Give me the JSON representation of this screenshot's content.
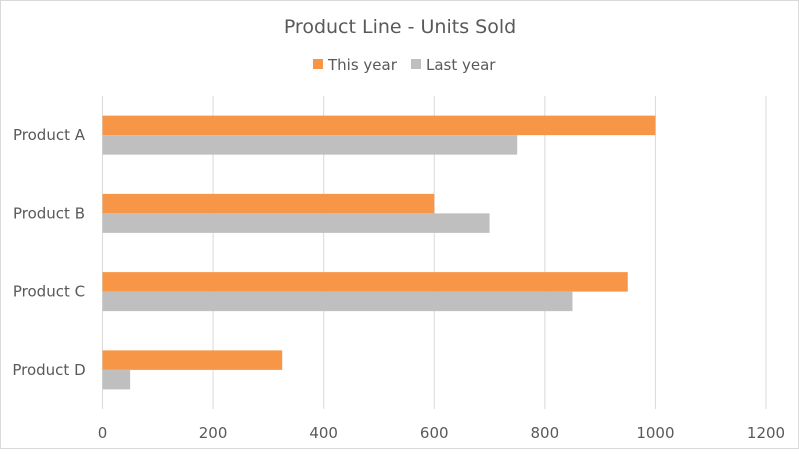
{
  "chart_data": {
    "type": "bar",
    "orientation": "horizontal",
    "title": "Product Line - Units Sold",
    "categories": [
      "Product A",
      "Product B",
      "Product C",
      "Product D"
    ],
    "series": [
      {
        "name": "This year",
        "color": "#F79646",
        "values": [
          1000,
          600,
          950,
          325
        ]
      },
      {
        "name": "Last year",
        "color": "#BFBFBF",
        "values": [
          750,
          700,
          850,
          50
        ]
      }
    ],
    "xlim": [
      0,
      1200
    ],
    "xticks": [
      "0",
      "200",
      "400",
      "600",
      "800",
      "1000",
      "1200"
    ],
    "grid": true,
    "legend": "top"
  }
}
